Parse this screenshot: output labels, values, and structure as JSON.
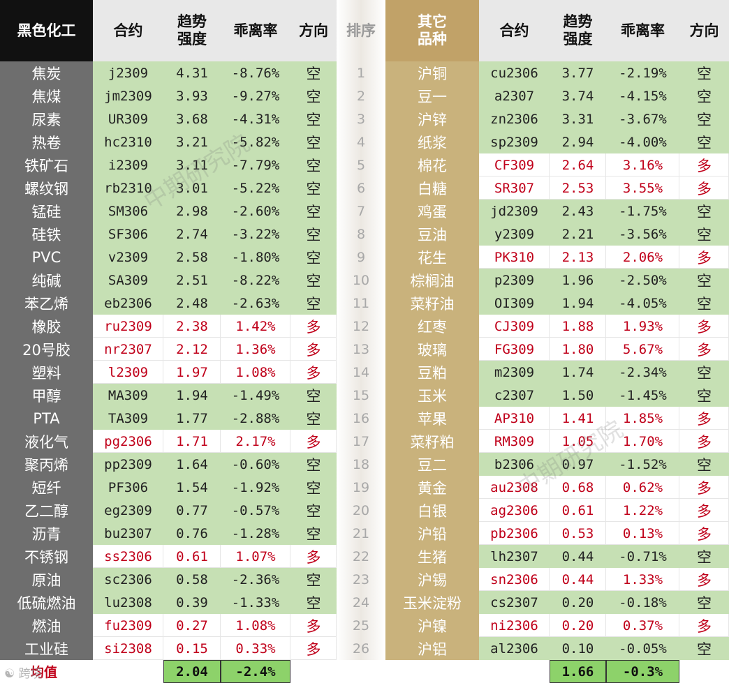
{
  "colors": {
    "short_bg": "#c6e0b4",
    "long_bg": "#ffffff",
    "left_name_bg": "#6e6e6e",
    "right_name_bg": "#c9b27c",
    "left_title_bg": "#111111",
    "right_title_bg": "#c1a268",
    "header_bg": "#e8e8e8",
    "avg_bg": "#8dd26a",
    "short_text": "#222222",
    "long_text": "#c0001a"
  },
  "left": {
    "title": "黑色化工",
    "headers": [
      "合约",
      "趋势\n强度",
      "乖离率",
      "方向"
    ],
    "rows": [
      {
        "name": "焦炭",
        "code": "j2309",
        "strength": "4.31",
        "dev": "-8.76%",
        "dir": "空"
      },
      {
        "name": "焦煤",
        "code": "jm2309",
        "strength": "3.93",
        "dev": "-9.27%",
        "dir": "空"
      },
      {
        "name": "尿素",
        "code": "UR309",
        "strength": "3.68",
        "dev": "-4.31%",
        "dir": "空"
      },
      {
        "name": "热卷",
        "code": "hc2310",
        "strength": "3.21",
        "dev": "-5.82%",
        "dir": "空"
      },
      {
        "name": "铁矿石",
        "code": "i2309",
        "strength": "3.11",
        "dev": "-7.79%",
        "dir": "空"
      },
      {
        "name": "螺纹钢",
        "code": "rb2310",
        "strength": "3.01",
        "dev": "-5.22%",
        "dir": "空"
      },
      {
        "name": "锰硅",
        "code": "SM306",
        "strength": "2.98",
        "dev": "-2.60%",
        "dir": "空"
      },
      {
        "name": "硅铁",
        "code": "SF306",
        "strength": "2.74",
        "dev": "-3.22%",
        "dir": "空"
      },
      {
        "name": "PVC",
        "code": "v2309",
        "strength": "2.58",
        "dev": "-1.80%",
        "dir": "空"
      },
      {
        "name": "纯碱",
        "code": "SA309",
        "strength": "2.51",
        "dev": "-8.22%",
        "dir": "空"
      },
      {
        "name": "苯乙烯",
        "code": "eb2306",
        "strength": "2.48",
        "dev": "-2.63%",
        "dir": "空"
      },
      {
        "name": "橡胶",
        "code": "ru2309",
        "strength": "2.38",
        "dev": "1.42%",
        "dir": "多"
      },
      {
        "name": "20号胶",
        "code": "nr2307",
        "strength": "2.12",
        "dev": "1.36%",
        "dir": "多"
      },
      {
        "name": "塑料",
        "code": "l2309",
        "strength": "1.97",
        "dev": "1.08%",
        "dir": "多"
      },
      {
        "name": "甲醇",
        "code": "MA309",
        "strength": "1.94",
        "dev": "-1.49%",
        "dir": "空"
      },
      {
        "name": "PTA",
        "code": "TA309",
        "strength": "1.77",
        "dev": "-2.88%",
        "dir": "空"
      },
      {
        "name": "液化气",
        "code": "pg2306",
        "strength": "1.71",
        "dev": "2.17%",
        "dir": "多"
      },
      {
        "name": "聚丙烯",
        "code": "pp2309",
        "strength": "1.64",
        "dev": "-0.60%",
        "dir": "空"
      },
      {
        "name": "短纤",
        "code": "PF306",
        "strength": "1.54",
        "dev": "-1.92%",
        "dir": "空"
      },
      {
        "name": "乙二醇",
        "code": "eg2309",
        "strength": "0.77",
        "dev": "-0.57%",
        "dir": "空"
      },
      {
        "name": "沥青",
        "code": "bu2307",
        "strength": "0.76",
        "dev": "-1.28%",
        "dir": "空"
      },
      {
        "name": "不锈钢",
        "code": "ss2306",
        "strength": "0.61",
        "dev": "1.07%",
        "dir": "多"
      },
      {
        "name": "原油",
        "code": "sc2306",
        "strength": "0.58",
        "dev": "-2.36%",
        "dir": "空"
      },
      {
        "name": "低硫燃油",
        "code": "lu2308",
        "strength": "0.39",
        "dev": "-1.33%",
        "dir": "空"
      },
      {
        "name": "燃油",
        "code": "fu2309",
        "strength": "0.27",
        "dev": "1.08%",
        "dir": "多"
      },
      {
        "name": "工业硅",
        "code": "si2308",
        "strength": "0.15",
        "dev": "0.33%",
        "dir": "多"
      }
    ],
    "avg_label": "均值",
    "avg_strength": "2.04",
    "avg_dev": "-2.4%"
  },
  "rank": {
    "title": "排序",
    "numbers": [
      "1",
      "2",
      "3",
      "4",
      "5",
      "6",
      "7",
      "8",
      "9",
      "10",
      "11",
      "12",
      "13",
      "14",
      "15",
      "16",
      "17",
      "18",
      "19",
      "20",
      "21",
      "22",
      "23",
      "24",
      "25",
      "26"
    ]
  },
  "right": {
    "title": "其它\n品种",
    "headers": [
      "合约",
      "趋势\n强度",
      "乖离率",
      "方向"
    ],
    "rows": [
      {
        "name": "沪铜",
        "code": "cu2306",
        "strength": "3.77",
        "dev": "-2.19%",
        "dir": "空"
      },
      {
        "name": "豆一",
        "code": "a2307",
        "strength": "3.74",
        "dev": "-4.15%",
        "dir": "空"
      },
      {
        "name": "沪锌",
        "code": "zn2306",
        "strength": "3.31",
        "dev": "-3.67%",
        "dir": "空"
      },
      {
        "name": "纸浆",
        "code": "sp2309",
        "strength": "2.94",
        "dev": "-4.00%",
        "dir": "空"
      },
      {
        "name": "棉花",
        "code": "CF309",
        "strength": "2.64",
        "dev": "3.16%",
        "dir": "多"
      },
      {
        "name": "白糖",
        "code": "SR307",
        "strength": "2.53",
        "dev": "3.55%",
        "dir": "多"
      },
      {
        "name": "鸡蛋",
        "code": "jd2309",
        "strength": "2.43",
        "dev": "-1.75%",
        "dir": "空"
      },
      {
        "name": "豆油",
        "code": "y2309",
        "strength": "2.21",
        "dev": "-3.56%",
        "dir": "空"
      },
      {
        "name": "花生",
        "code": "PK310",
        "strength": "2.13",
        "dev": "2.06%",
        "dir": "多"
      },
      {
        "name": "棕榈油",
        "code": "p2309",
        "strength": "1.96",
        "dev": "-2.50%",
        "dir": "空"
      },
      {
        "name": "菜籽油",
        "code": "OI309",
        "strength": "1.94",
        "dev": "-4.05%",
        "dir": "空"
      },
      {
        "name": "红枣",
        "code": "CJ309",
        "strength": "1.88",
        "dev": "1.93%",
        "dir": "多"
      },
      {
        "name": "玻璃",
        "code": "FG309",
        "strength": "1.80",
        "dev": "5.67%",
        "dir": "多"
      },
      {
        "name": "豆粕",
        "code": "m2309",
        "strength": "1.74",
        "dev": "-2.34%",
        "dir": "空"
      },
      {
        "name": "玉米",
        "code": "c2307",
        "strength": "1.50",
        "dev": "-1.45%",
        "dir": "空"
      },
      {
        "name": "苹果",
        "code": "AP310",
        "strength": "1.41",
        "dev": "1.85%",
        "dir": "多"
      },
      {
        "name": "菜籽粕",
        "code": "RM309",
        "strength": "1.05",
        "dev": "1.70%",
        "dir": "多"
      },
      {
        "name": "豆二",
        "code": "b2306",
        "strength": "0.97",
        "dev": "-1.52%",
        "dir": "空"
      },
      {
        "name": "黄金",
        "code": "au2308",
        "strength": "0.68",
        "dev": "0.62%",
        "dir": "多"
      },
      {
        "name": "白银",
        "code": "ag2306",
        "strength": "0.61",
        "dev": "1.22%",
        "dir": "多"
      },
      {
        "name": "沪铅",
        "code": "pb2306",
        "strength": "0.53",
        "dev": "0.13%",
        "dir": "多"
      },
      {
        "name": "生猪",
        "code": "lh2307",
        "strength": "0.44",
        "dev": "-0.71%",
        "dir": "空"
      },
      {
        "name": "沪锡",
        "code": "sn2306",
        "strength": "0.44",
        "dev": "1.33%",
        "dir": "多"
      },
      {
        "name": "玉米淀粉",
        "code": "cs2307",
        "strength": "0.20",
        "dev": "-0.18%",
        "dir": "空"
      },
      {
        "name": "沪镍",
        "code": "ni2306",
        "strength": "0.20",
        "dev": "0.37%",
        "dir": "多"
      },
      {
        "name": "沪铝",
        "code": "al2306",
        "strength": "0.10",
        "dev": "-0.05%",
        "dir": "空"
      }
    ],
    "avg_strength": "1.66",
    "avg_dev": "-0.3%"
  },
  "watermark": "中期研究院",
  "logo_text": "跨境"
}
